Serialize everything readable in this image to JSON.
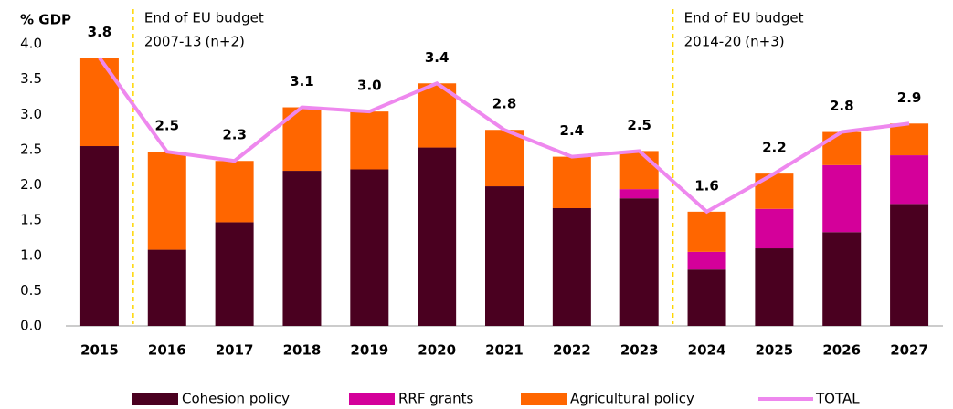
{
  "chart_data": {
    "type": "stacked-bar-line",
    "y_label": "% GDP",
    "categories": [
      "2015",
      "2016",
      "2017",
      "2018",
      "2019",
      "2020",
      "2021",
      "2022",
      "2023",
      "2024",
      "2025",
      "2026",
      "2027"
    ],
    "series": [
      {
        "name": "Cohesion policy",
        "color": "#4a0020",
        "values": [
          2.55,
          1.08,
          1.47,
          2.2,
          2.22,
          2.53,
          1.98,
          1.67,
          1.81,
          0.8,
          1.1,
          1.33,
          1.73
        ]
      },
      {
        "name": "RRF grants",
        "color": "#d4009a",
        "values": [
          0,
          0,
          0,
          0,
          0,
          0,
          0,
          0,
          0.13,
          0.25,
          0.56,
          0.95,
          0.69
        ]
      },
      {
        "name": "Agricultural policy",
        "color": "#ff6600",
        "values": [
          1.25,
          1.39,
          0.87,
          0.9,
          0.82,
          0.91,
          0.8,
          0.73,
          0.54,
          0.57,
          0.5,
          0.47,
          0.45
        ]
      },
      {
        "name": "TOTAL",
        "type": "line",
        "color": "#ee88ee",
        "values": [
          3.8,
          2.47,
          2.34,
          3.1,
          3.04,
          3.44,
          2.78,
          2.4,
          2.48,
          1.62,
          2.16,
          2.75,
          2.87
        ],
        "value_labels": [
          "3.8",
          "2.5",
          "2.3",
          "3.1",
          "3.0",
          "3.4",
          "2.8",
          "2.4",
          "2.5",
          "1.6",
          "2.2",
          "2.8",
          "2.9"
        ]
      }
    ],
    "ylim": [
      0,
      4
    ],
    "yticks": [
      {
        "value": 0,
        "label": "0.0"
      },
      0.5,
      {
        "value": 1,
        "label": "1.0"
      },
      1.5,
      {
        "value": 2,
        "label": "2.0"
      },
      2.5,
      {
        "value": 3,
        "label": "3.0"
      },
      3.5,
      {
        "value": 4,
        "label": "4.0"
      }
    ],
    "annotations": [
      {
        "lines": [
          "End of EU budget",
          "2007-13"
        ],
        "note": "(n+2)"
      },
      {
        "lines": [
          "End of EU budget",
          "2014-20"
        ],
        "note": "(n+3)"
      }
    ]
  }
}
